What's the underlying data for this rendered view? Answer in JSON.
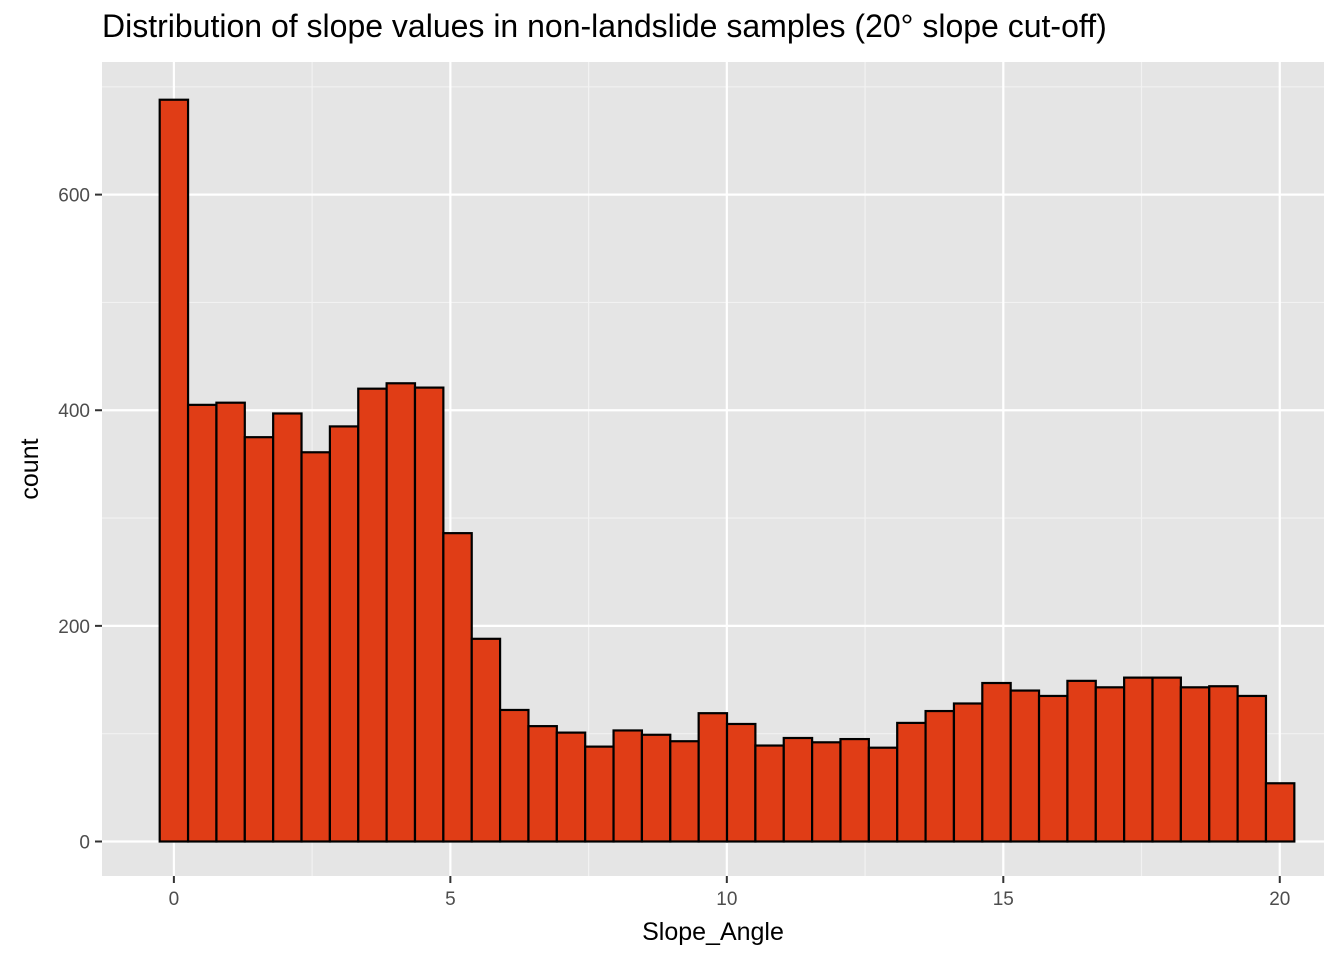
{
  "chart_data": {
    "type": "bar",
    "subtype": "histogram",
    "title": "Distribution of slope values in non-landslide samples (20° slope cut-off)",
    "xlabel": "Slope_Angle",
    "ylabel": "count",
    "xlim": [
      -1.3,
      20.8
    ],
    "ylim": [
      -32,
      723
    ],
    "x_ticks": [
      0,
      5,
      10,
      15,
      20
    ],
    "y_ticks": [
      0,
      200,
      400,
      600
    ],
    "bin_width": 0.513,
    "bin_start": -0.2565,
    "values": [
      688,
      405,
      407,
      375,
      397,
      361,
      385,
      420,
      425,
      421,
      286,
      188,
      122,
      107,
      101,
      88,
      103,
      99,
      93,
      119,
      109,
      89,
      96,
      92,
      95,
      87,
      110,
      121,
      128,
      147,
      140,
      135,
      149,
      143,
      152,
      152,
      143,
      144,
      135,
      54
    ],
    "bar_fill": "#e03d16",
    "bar_outline": "#000000",
    "panel_background": "#e5e5e5",
    "grid": true
  }
}
